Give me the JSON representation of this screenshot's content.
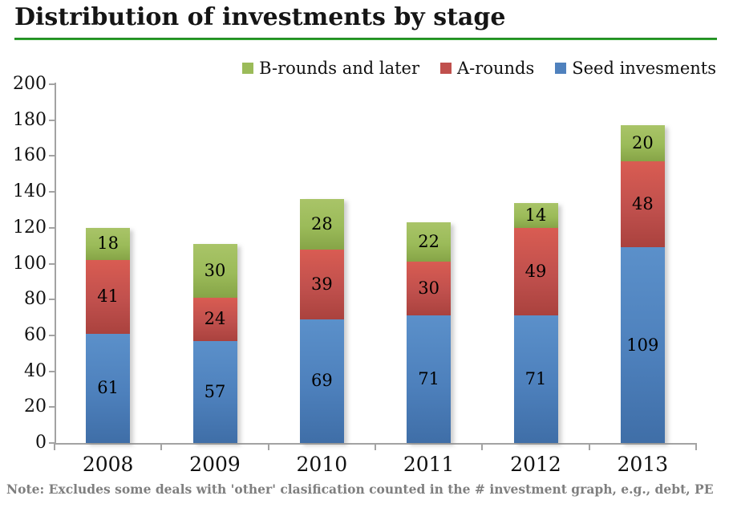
{
  "page": {
    "title": "Distribution of investments by stage",
    "note": "Note: Excludes some deals with 'other' clasification counted in the # investment graph, e.g., debt, PE"
  },
  "colors": {
    "seed_investments": "#4F81BD",
    "a_rounds": "#C0504D",
    "b_rounds_and_later": "#9BBB59",
    "title_rule_green": "#2DA22D",
    "axis_gray": "#A3A3A3",
    "note_gray": "#7F7F7F",
    "label_black": "#000000"
  },
  "chart_data": {
    "type": "bar",
    "stacked": true,
    "title": "Distribution of investments by stage",
    "xlabel": "",
    "ylabel": "",
    "categories": [
      "2008",
      "2009",
      "2010",
      "2011",
      "2012",
      "2013"
    ],
    "series": [
      {
        "name": "Seed invesments",
        "color": "#4F81BD",
        "css": "seg-seed",
        "values": [
          61,
          57,
          69,
          71,
          71,
          109
        ]
      },
      {
        "name": "A-rounds",
        "color": "#C0504D",
        "css": "seg-a",
        "values": [
          41,
          24,
          39,
          30,
          49,
          48
        ]
      },
      {
        "name": "B-rounds and later",
        "color": "#9BBB59",
        "css": "seg-b",
        "values": [
          18,
          30,
          28,
          22,
          14,
          20
        ]
      }
    ],
    "totals": [
      120,
      111,
      136,
      123,
      134,
      177
    ],
    "legend": [
      "B-rounds and later",
      "A-rounds",
      "Seed invesments"
    ],
    "legend_position": "top-right",
    "ylim": [
      0,
      200
    ],
    "yticks": [
      0,
      20,
      40,
      60,
      80,
      100,
      120,
      140,
      160,
      180,
      200
    ],
    "grid": false,
    "data_labels": true
  }
}
